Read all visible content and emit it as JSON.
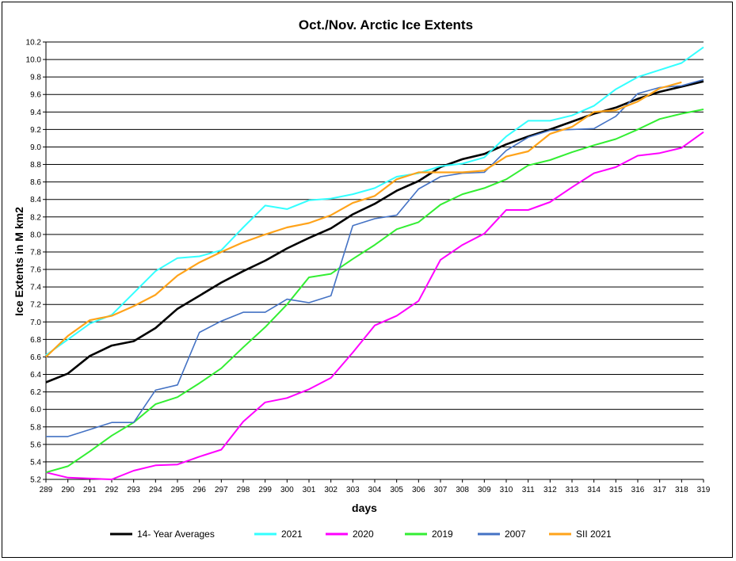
{
  "chart_data": {
    "type": "line",
    "title": "Oct./Nov.  Arctic Ice Extents",
    "xlabel": "days",
    "ylabel": "Ice Extents in M km2",
    "x": [
      289,
      290,
      291,
      292,
      293,
      294,
      295,
      296,
      297,
      298,
      299,
      300,
      301,
      302,
      303,
      304,
      305,
      306,
      307,
      308,
      309,
      310,
      311,
      312,
      313,
      314,
      315,
      316,
      317,
      318,
      319
    ],
    "xlim": [
      289,
      319
    ],
    "ylim": [
      5.2,
      10.2
    ],
    "ytick_step": 0.2,
    "grid": "horizontal",
    "legend_position": "bottom",
    "series": [
      {
        "name": "14- Year Averages",
        "color": "#000000",
        "width": 2.6,
        "values": [
          6.31,
          6.41,
          6.61,
          6.73,
          6.78,
          6.93,
          7.15,
          7.3,
          7.45,
          7.58,
          7.7,
          7.84,
          7.96,
          8.07,
          8.23,
          8.35,
          8.5,
          8.61,
          8.77,
          8.86,
          8.92,
          9.03,
          9.12,
          9.2,
          9.29,
          9.38,
          9.45,
          9.55,
          9.63,
          9.69,
          9.75
        ]
      },
      {
        "name": "2021",
        "color": "#33ffff",
        "width": 2,
        "values": [
          6.62,
          6.8,
          6.98,
          7.08,
          7.33,
          7.58,
          7.73,
          7.75,
          7.82,
          8.08,
          8.33,
          8.29,
          8.39,
          8.41,
          8.46,
          8.53,
          8.66,
          8.7,
          8.78,
          8.81,
          8.88,
          9.12,
          9.3,
          9.3,
          9.36,
          9.47,
          9.66,
          9.8,
          9.88,
          9.96,
          10.14
        ]
      },
      {
        "name": "2020",
        "color": "#ff00ff",
        "width": 2,
        "values": [
          5.28,
          5.22,
          5.21,
          5.2,
          5.3,
          5.36,
          5.37,
          5.46,
          5.54,
          5.86,
          6.08,
          6.13,
          6.23,
          6.36,
          6.65,
          6.96,
          7.07,
          7.24,
          7.71,
          7.88,
          8.01,
          8.28,
          8.28,
          8.37,
          8.54,
          8.7,
          8.77,
          8.9,
          8.93,
          8.99,
          9.17
        ]
      },
      {
        "name": "2019",
        "color": "#33ee33",
        "width": 2,
        "values": [
          5.28,
          5.35,
          5.52,
          5.7,
          5.85,
          6.06,
          6.14,
          6.3,
          6.47,
          6.71,
          6.94,
          7.2,
          7.51,
          7.55,
          7.72,
          7.88,
          8.06,
          8.14,
          8.34,
          8.46,
          8.53,
          8.63,
          8.79,
          8.85,
          8.94,
          9.02,
          9.09,
          9.2,
          9.32,
          9.38,
          9.43
        ]
      },
      {
        "name": "2007",
        "color": "#4472c4",
        "width": 1.6,
        "values": [
          5.69,
          5.69,
          5.77,
          5.85,
          5.85,
          6.22,
          6.28,
          6.88,
          7.01,
          7.11,
          7.11,
          7.26,
          7.22,
          7.3,
          8.1,
          8.18,
          8.22,
          8.52,
          8.66,
          8.7,
          8.71,
          8.96,
          9.11,
          9.19,
          9.2,
          9.21,
          9.35,
          9.61,
          9.68,
          9.7,
          9.77
        ]
      },
      {
        "name": "SII 2021",
        "color": "#ffa31a",
        "width": 2.2,
        "values": [
          6.6,
          6.84,
          7.02,
          7.07,
          7.18,
          7.31,
          7.53,
          7.68,
          7.8,
          7.91,
          8.0,
          8.08,
          8.13,
          8.22,
          8.36,
          8.44,
          8.63,
          8.71,
          8.71,
          8.71,
          8.73,
          8.89,
          8.95,
          9.15,
          9.23,
          9.4,
          9.42,
          9.52,
          9.67,
          9.74,
          null
        ]
      }
    ]
  }
}
